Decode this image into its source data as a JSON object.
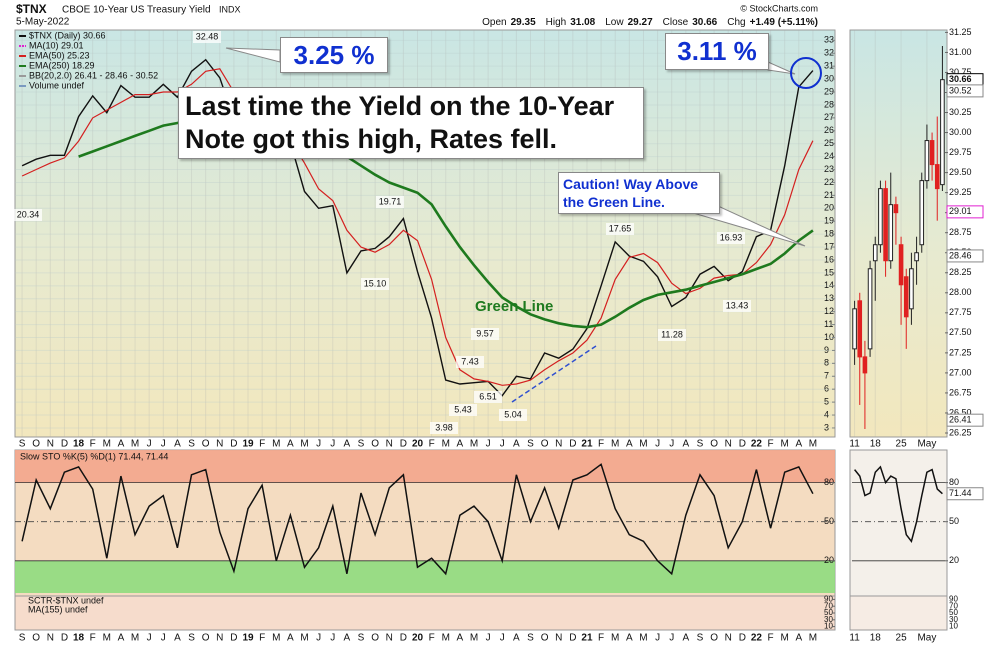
{
  "chart_data": [
    {
      "type": "line",
      "symbol": "$TNX",
      "title": "CBOE 10-Year US Treasury Yield",
      "exchange": "INDX",
      "date": "5-May-2022",
      "source": "© StockCharts.com",
      "quote": [
        {
          "label": "Open",
          "value": 29.35
        },
        {
          "label": "High",
          "value": 31.08
        },
        {
          "label": "Low",
          "value": 29.27
        },
        {
          "label": "Close",
          "value": 30.66
        },
        {
          "label": "Chg",
          "value": "+1.49 (+5.11%)"
        }
      ],
      "categories": [
        "S",
        "O",
        "N",
        "D",
        "18",
        "F",
        "M",
        "A",
        "M",
        "J",
        "J",
        "A",
        "S",
        "O",
        "N",
        "D",
        "19",
        "F",
        "M",
        "A",
        "M",
        "J",
        "J",
        "A",
        "S",
        "O",
        "N",
        "D",
        "20",
        "F",
        "M",
        "A",
        "M",
        "J",
        "J",
        "A",
        "S",
        "O",
        "N",
        "D",
        "21",
        "F",
        "M",
        "A",
        "M",
        "J",
        "J",
        "A",
        "S",
        "O",
        "N",
        "D",
        "22",
        "F",
        "M",
        "A",
        "M"
      ],
      "series": [
        {
          "name": "$TNX (Daily) 30.66",
          "color": "#111111",
          "values": [
            23.3,
            23.8,
            24.1,
            24.1,
            27.1,
            28.7,
            27.4,
            29.5,
            28.6,
            28.6,
            29.6,
            28.6,
            30.6,
            31.5,
            30.1,
            26.9,
            26.3,
            27.3,
            24.1,
            25.1,
            21.3,
            20.0,
            20.2,
            15.0,
            16.7,
            16.9,
            17.8,
            19.2,
            15.1,
            11.5,
            6.7,
            6.4,
            6.5,
            6.6,
            5.5,
            7.0,
            6.8,
            8.8,
            8.4,
            9.1,
            10.7,
            14.0,
            17.4,
            16.3,
            15.9,
            14.7,
            12.4,
            13.1,
            14.9,
            15.5,
            14.4,
            15.1,
            17.8,
            18.3,
            23.3,
            29.4,
            30.66
          ]
        },
        {
          "name": "EMA(50) 25.23",
          "color": "#d42020",
          "values": [
            22.5,
            23.0,
            23.5,
            23.9,
            25.2,
            27.0,
            27.6,
            28.2,
            28.8,
            28.8,
            29.0,
            29.0,
            29.6,
            30.6,
            30.8,
            29.0,
            27.5,
            27.0,
            26.0,
            25.3,
            23.5,
            21.5,
            20.6,
            18.3,
            17.0,
            16.6,
            17.2,
            18.3,
            17.5,
            14.5,
            10.0,
            7.5,
            6.8,
            6.6,
            6.3,
            6.4,
            6.7,
            7.5,
            8.2,
            8.8,
            9.8,
            11.5,
            14.5,
            16.2,
            16.5,
            15.8,
            14.2,
            13.4,
            13.8,
            14.6,
            14.8,
            14.9,
            15.8,
            17.2,
            19.5,
            23.0,
            25.23
          ]
        },
        {
          "name": "EMA(250) 18.29",
          "color": "#1e7a1e",
          "values": [
            null,
            null,
            null,
            null,
            24.0,
            24.4,
            24.8,
            25.2,
            25.6,
            26.0,
            26.4,
            26.6,
            26.9,
            27.2,
            27.4,
            27.4,
            27.3,
            27.2,
            26.9,
            26.6,
            26.1,
            25.5,
            24.9,
            24.0,
            23.3,
            22.6,
            22.0,
            21.6,
            21.2,
            20.3,
            18.6,
            17.0,
            15.6,
            14.3,
            13.1,
            12.4,
            11.8,
            11.4,
            11.1,
            10.9,
            10.8,
            11.0,
            11.6,
            12.3,
            12.9,
            13.3,
            13.5,
            13.7,
            14.0,
            14.3,
            14.6,
            14.9,
            15.3,
            15.7,
            16.5,
            17.5,
            18.29
          ]
        }
      ],
      "legend_extra": [
        {
          "name": "MA(10) 29.01",
          "color": "#e020d0"
        },
        {
          "name": "BB(20,2.0) 26.41 - 28.46 - 30.52",
          "color": "#9a9a9a"
        },
        {
          "name": "Volume undef",
          "color": "#7a9ac0"
        }
      ],
      "ylim": [
        2.3,
        33.8
      ],
      "yticks": [
        3,
        4,
        5,
        6,
        7,
        8,
        9,
        10,
        11,
        12,
        13,
        14,
        15,
        16,
        17,
        18,
        19,
        20,
        21,
        22,
        23,
        24,
        25,
        26,
        27,
        28,
        29,
        30,
        31,
        32,
        33
      ],
      "grid": true,
      "peak_labels": [
        32.48,
        20.34,
        19.71,
        {
          "value": 15.1,
          "label": "15.10"
        },
        3.98,
        5.43,
        7.43,
        9.57,
        6.51,
        5.04,
        17.65,
        11.28,
        16.93,
        13.43
      ],
      "annotations": [
        "3.25 %",
        "3.11 %",
        "Last time the Yield on the 10-Year Note got this high, Rates fell.",
        "Caution! Way Above the Green Line.",
        "Green Line"
      ]
    },
    {
      "type": "line",
      "title": "Slow STO %K(5) %D(1) 71.44, 71.44",
      "color": "#111111",
      "categories": [
        "S",
        "O",
        "N",
        "D",
        "18",
        "F",
        "M",
        "A",
        "M",
        "J",
        "J",
        "A",
        "S",
        "O",
        "N",
        "D",
        "19",
        "F",
        "M",
        "A",
        "M",
        "J",
        "J",
        "A",
        "S",
        "O",
        "N",
        "D",
        "20",
        "F",
        "M",
        "A",
        "M",
        "J",
        "J",
        "A",
        "S",
        "O",
        "N",
        "D",
        "21",
        "F",
        "M",
        "A",
        "M",
        "J",
        "J",
        "A",
        "S",
        "O",
        "N",
        "D",
        "22",
        "F",
        "M",
        "A",
        "M"
      ],
      "values": [
        35,
        82,
        60,
        88,
        92,
        75,
        22,
        85,
        40,
        62,
        70,
        30,
        86,
        90,
        42,
        12,
        60,
        78,
        20,
        55,
        15,
        30,
        62,
        10,
        72,
        40,
        76,
        86,
        15,
        22,
        10,
        55,
        62,
        50,
        20,
        86,
        50,
        76,
        45,
        82,
        86,
        94,
        60,
        40,
        35,
        20,
        10,
        55,
        86,
        70,
        30,
        50,
        90,
        45,
        88,
        92,
        71.44
      ],
      "ylim": [
        -7,
        105
      ],
      "yticks": [
        20,
        50,
        80
      ],
      "zone_colors": [
        "#8fdc7e",
        "#f3a58c"
      ]
    },
    {
      "type": "line",
      "legend": [
        "SCTR-$TNX undef",
        "MA(155) undef"
      ],
      "ylim": [
        0,
        100
      ],
      "yticks": [
        10,
        30,
        50,
        70,
        90
      ]
    },
    {
      "type": "candlestick",
      "categories": [
        "11",
        null,
        null,
        null,
        "18",
        null,
        null,
        null,
        null,
        "25",
        null,
        null,
        null,
        null,
        "May",
        null,
        null,
        null
      ],
      "open": [
        27.3,
        27.9,
        27.2,
        27.3,
        28.4,
        28.6,
        29.3,
        28.4,
        29.1,
        28.6,
        28.2,
        27.8,
        28.4,
        28.6,
        29.4,
        29.9,
        29.6,
        29.35
      ],
      "high": [
        27.9,
        28.0,
        27.4,
        28.4,
        28.7,
        29.4,
        29.4,
        29.5,
        29.2,
        28.7,
        28.3,
        28.5,
        28.7,
        29.5,
        30.1,
        30.0,
        30.2,
        31.08
      ],
      "low": [
        27.1,
        26.6,
        26.3,
        27.2,
        27.9,
        28.5,
        28.2,
        28.3,
        28.6,
        27.6,
        27.3,
        27.6,
        28.1,
        28.5,
        29.3,
        29.4,
        28.9,
        29.27
      ],
      "close": [
        27.8,
        27.2,
        27.0,
        28.3,
        28.6,
        29.3,
        28.4,
        29.1,
        29.0,
        28.1,
        27.7,
        28.3,
        28.5,
        29.4,
        29.9,
        29.6,
        29.3,
        30.66
      ],
      "up_color": "#ffffff",
      "down_color": "#e02020",
      "ylim": [
        26.2,
        31.28
      ],
      "yticks": [
        26.25,
        {
          "value": 26.5,
          "label": "26.50"
        },
        26.75,
        {
          "value": 27,
          "label": "27.00"
        },
        27.25,
        {
          "value": 27.5,
          "label": "27.50"
        },
        27.75,
        {
          "value": 28,
          "label": "28.00"
        },
        28.25,
        {
          "value": 28.5,
          "label": "28.50"
        },
        28.75,
        {
          "value": 29,
          "label": "29.00"
        },
        29.25,
        {
          "value": 29.5,
          "label": "29.50"
        },
        29.75,
        {
          "value": 30,
          "label": "30.00"
        },
        30.25,
        {
          "value": 30.5,
          "label": "30.50"
        },
        30.75,
        {
          "value": 31,
          "label": "31.00"
        },
        31.25
      ],
      "tags": [
        {
          "value": 30.66,
          "color": "#000000"
        },
        {
          "value": 30.52,
          "color": "#888888"
        },
        {
          "value": 29.01,
          "color": "#e020d0"
        },
        {
          "value": 28.46,
          "color": "#888888"
        },
        {
          "value": 26.41,
          "color": "#888888"
        }
      ]
    },
    {
      "type": "line",
      "color": "#111111",
      "categories": [
        "11",
        null,
        null,
        null,
        "18",
        null,
        null,
        null,
        null,
        "25",
        null,
        null,
        null,
        null,
        "May",
        null,
        null,
        null
      ],
      "values": [
        90,
        85,
        70,
        72,
        88,
        92,
        80,
        85,
        83,
        60,
        40,
        35,
        50,
        70,
        88,
        90,
        75,
        71.44
      ],
      "ylim": [
        -7,
        105
      ],
      "yticks": [
        20,
        50,
        80
      ],
      "tags": [
        {
          "value": 71.44,
          "color": "#888888"
        }
      ]
    }
  ]
}
